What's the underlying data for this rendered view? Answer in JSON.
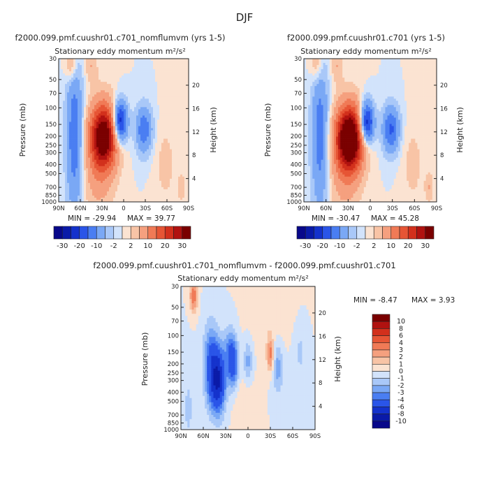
{
  "figure": {
    "title": "DJF"
  },
  "colors": {
    "cool": [
      "#08088a",
      "#0a1aa8",
      "#1432cc",
      "#2a55e8",
      "#4a7ef2",
      "#7aa8f5",
      "#a9c8f8",
      "#d2e3fb"
    ],
    "warm": [
      "#fbe3d2",
      "#f8c4a6",
      "#f5a07f",
      "#f07a56",
      "#e65535",
      "#d2301c",
      "#b01210",
      "#7a0000"
    ]
  },
  "chart_data": [
    {
      "type": "heatmap",
      "id": "panel-a",
      "title": "f2000.099.pmf.cuushr01.c701_nomflumvm (yrs 1-5)",
      "subtitle": "Stationary eddy momentum  m²/s²",
      "xlabel": "",
      "ylabel": "Pressure (mb)",
      "y2label": "Height (km)",
      "x_ticks": [
        "90N",
        "60N",
        "30N",
        "0",
        "30S",
        "60S",
        "90S"
      ],
      "y_ticks": [
        30,
        50,
        70,
        100,
        150,
        200,
        250,
        300,
        400,
        500,
        700,
        850,
        1000
      ],
      "y2_ticks": [
        4,
        8,
        12,
        16,
        20
      ],
      "ylim": [
        1000,
        30
      ],
      "xlim": [
        90,
        -90
      ],
      "min_label": "MIN = -29.94",
      "max_label": "MAX =  39.77",
      "min": -29.94,
      "max": 39.77,
      "levels": [
        -30,
        -25,
        -20,
        -15,
        -10,
        -5,
        -2,
        0,
        2,
        5,
        10,
        15,
        20,
        25,
        30
      ],
      "colorbar_labels": [
        "-30",
        "-20",
        "-10",
        "-2",
        "2",
        "10",
        "20",
        "30"
      ],
      "features": [
        {
          "lat": 68,
          "p": 200,
          "value": -14,
          "sx": 8,
          "sy": 1.3
        },
        {
          "lat": 28,
          "p": 200,
          "value": 36,
          "sx": 13,
          "sy": 0.55
        },
        {
          "lat": 35,
          "p": 500,
          "value": 6,
          "sx": 15,
          "sy": 0.8
        },
        {
          "lat": 5,
          "p": 140,
          "value": -26,
          "sx": 7,
          "sy": 0.35
        },
        {
          "lat": -28,
          "p": 170,
          "value": -14,
          "sx": 8,
          "sy": 0.4
        },
        {
          "lat": 72,
          "p": 35,
          "value": 8,
          "sx": 6,
          "sy": 0.3
        },
        {
          "lat": 45,
          "p": 35,
          "value": 5,
          "sx": 6,
          "sy": 0.3
        },
        {
          "lat": -58,
          "p": 400,
          "value": 3,
          "sx": 10,
          "sy": 0.7
        },
        {
          "lat": -80,
          "p": 700,
          "value": 4,
          "sx": 4,
          "sy": 0.25
        }
      ]
    },
    {
      "type": "heatmap",
      "id": "panel-b",
      "title": "f2000.099.pmf.cuushr01.c701 (yrs 1-5)",
      "subtitle": "Stationary eddy momentum  m²/s²",
      "xlabel": "",
      "ylabel": "Pressure (mb)",
      "y2label": "Height (km)",
      "x_ticks": [
        "90N",
        "60N",
        "30N",
        "0",
        "30S",
        "60S",
        "90S"
      ],
      "y_ticks": [
        30,
        50,
        70,
        100,
        150,
        200,
        250,
        300,
        400,
        500,
        700,
        850,
        1000
      ],
      "y2_ticks": [
        4,
        8,
        12,
        16,
        20
      ],
      "ylim": [
        1000,
        30
      ],
      "xlim": [
        90,
        -90
      ],
      "min_label": "MIN = -30.47",
      "max_label": "MAX =  45.28",
      "min": -30.47,
      "max": 45.28,
      "levels": [
        -30,
        -25,
        -20,
        -15,
        -10,
        -5,
        -2,
        0,
        2,
        5,
        10,
        15,
        20,
        25,
        30
      ],
      "colorbar_labels": [
        "-30",
        "-20",
        "-10",
        "-2",
        "2",
        "10",
        "20",
        "30"
      ],
      "features": [
        {
          "lat": 68,
          "p": 200,
          "value": -13,
          "sx": 8,
          "sy": 1.3
        },
        {
          "lat": 28,
          "p": 210,
          "value": 42,
          "sx": 13,
          "sy": 0.55
        },
        {
          "lat": 35,
          "p": 500,
          "value": 6,
          "sx": 15,
          "sy": 0.8
        },
        {
          "lat": 5,
          "p": 145,
          "value": -27,
          "sx": 7,
          "sy": 0.35
        },
        {
          "lat": -28,
          "p": 170,
          "value": -16,
          "sx": 8,
          "sy": 0.4
        },
        {
          "lat": 72,
          "p": 35,
          "value": 7,
          "sx": 6,
          "sy": 0.3
        },
        {
          "lat": 45,
          "p": 35,
          "value": 5,
          "sx": 6,
          "sy": 0.3
        },
        {
          "lat": -58,
          "p": 400,
          "value": 3,
          "sx": 10,
          "sy": 0.7
        },
        {
          "lat": -80,
          "p": 700,
          "value": 5,
          "sx": 4,
          "sy": 0.25
        }
      ]
    },
    {
      "type": "heatmap",
      "id": "panel-diff",
      "title": "f2000.099.pmf.cuushr01.c701_nomflumvm - f2000.099.pmf.cuushr01.c701",
      "subtitle": "Stationary eddy momentum  m²/s²",
      "xlabel": "",
      "ylabel": "Pressure (mb)",
      "y2label": "Height (km)",
      "x_ticks": [
        "90N",
        "60N",
        "30N",
        "0",
        "30S",
        "60S",
        "90S"
      ],
      "y_ticks": [
        30,
        50,
        70,
        100,
        150,
        200,
        250,
        300,
        400,
        500,
        700,
        850,
        1000
      ],
      "y2_ticks": [
        4,
        8,
        12,
        16,
        20
      ],
      "ylim": [
        1000,
        30
      ],
      "xlim": [
        90,
        -90
      ],
      "min_label": "MIN =   -8.47",
      "max_label": "MAX =    3.93",
      "min": -8.47,
      "max": 3.93,
      "levels": [
        -10,
        -8,
        -6,
        -4,
        -3,
        -2,
        -1,
        0,
        1,
        2,
        3,
        4,
        6,
        8,
        10
      ],
      "colorbar_labels": [
        "10",
        "8",
        "6",
        "4",
        "3",
        "2",
        "1",
        "0",
        "-1",
        "-2",
        "-3",
        "-4",
        "-6",
        "-8",
        "-10"
      ],
      "features": [
        {
          "lat": 73,
          "p": 38,
          "value": 4,
          "sx": 3.5,
          "sy": 0.28
        },
        {
          "lat": 40,
          "p": 300,
          "value": -7.5,
          "sx": 7,
          "sy": 0.55
        },
        {
          "lat": 50,
          "p": 200,
          "value": -4,
          "sx": 7,
          "sy": 0.7
        },
        {
          "lat": 20,
          "p": 200,
          "value": -5,
          "sx": 5,
          "sy": 0.4
        },
        {
          "lat": 25,
          "p": 130,
          "value": -2,
          "sx": 6,
          "sy": 0.4
        },
        {
          "lat": 0,
          "p": 190,
          "value": -2.5,
          "sx": 4,
          "sy": 0.35
        },
        {
          "lat": -30,
          "p": 160,
          "value": 3.5,
          "sx": 3.5,
          "sy": 0.3
        },
        {
          "lat": -40,
          "p": 220,
          "value": -2.5,
          "sx": 5,
          "sy": 0.45
        },
        {
          "lat": -70,
          "p": 150,
          "value": -1.2,
          "sx": 6,
          "sy": 0.5
        },
        {
          "lat": 5,
          "p": 600,
          "value": 0.8,
          "sx": 10,
          "sy": 0.6
        },
        {
          "lat": -30,
          "p": 60,
          "value": 0.8,
          "sx": 20,
          "sy": 0.5
        },
        {
          "lat": 80,
          "p": 600,
          "value": -1.2,
          "sx": 6,
          "sy": 0.8
        }
      ]
    }
  ]
}
